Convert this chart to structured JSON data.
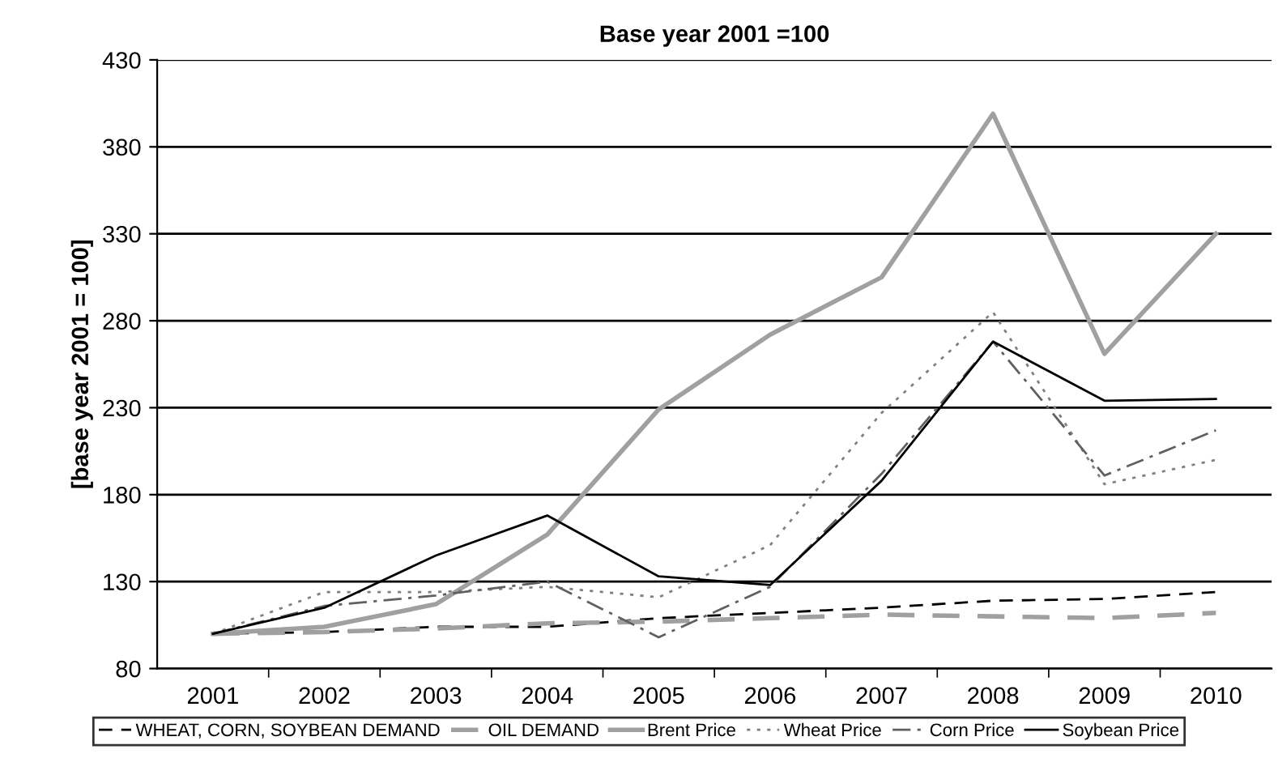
{
  "chart_data": {
    "type": "line",
    "title": "Base year 2001 =100",
    "ylabel": "[base year 2001 = 100]",
    "categories": [
      "2001",
      "2002",
      "2003",
      "2004",
      "2005",
      "2006",
      "2007",
      "2008",
      "2009",
      "2010"
    ],
    "series": [
      {
        "name": "WHEAT, CORN, SOYBEAN DEMAND",
        "color": "#000000",
        "line_style": "dashed",
        "values": [
          100,
          101,
          104,
          104,
          109,
          112,
          115,
          119,
          120,
          124
        ]
      },
      {
        "name": "OIL DEMAND",
        "color": "#a0a0a0",
        "line_style": "dashed",
        "values": [
          100,
          101,
          103,
          106,
          107,
          109,
          111,
          110,
          109,
          112
        ]
      },
      {
        "name": "Brent Price",
        "color": "#a0a0a0",
        "line_style": "solid",
        "values": [
          100,
          104,
          117,
          157,
          229,
          272,
          305,
          399,
          261,
          330
        ]
      },
      {
        "name": "Wheat Price",
        "color": "#808080",
        "line_style": "dotted",
        "values": [
          100,
          124,
          124,
          127,
          121,
          151,
          227,
          285,
          186,
          200
        ]
      },
      {
        "name": "Corn Price",
        "color": "#606060",
        "line_style": "dashdot",
        "values": [
          100,
          116,
          122,
          130,
          98,
          127,
          192,
          268,
          191,
          217
        ]
      },
      {
        "name": "Soybean Price",
        "color": "#000000",
        "line_style": "solid",
        "values": [
          100,
          115,
          145,
          168,
          133,
          128,
          188,
          268,
          234,
          235
        ]
      }
    ],
    "ylim": [
      80,
      430
    ],
    "yticks": [
      80,
      130,
      180,
      230,
      280,
      330,
      380,
      430
    ],
    "grid": "y",
    "legend": "bottom",
    "marker": "none"
  }
}
